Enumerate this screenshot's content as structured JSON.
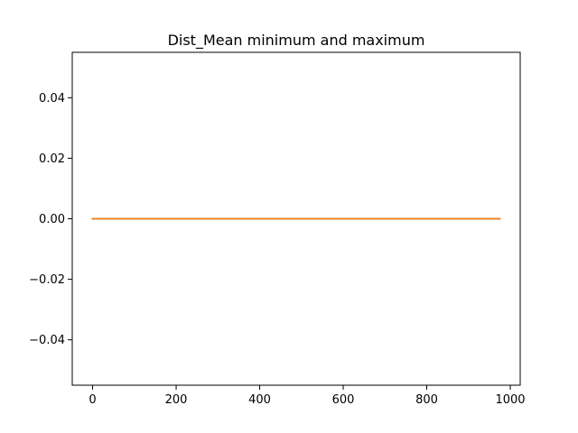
{
  "chart_data": {
    "type": "line",
    "title": "Dist_Mean minimum and maximum",
    "xlabel": "",
    "ylabel": "",
    "xlim": [
      -48.75,
      1023.75
    ],
    "ylim": [
      -0.055,
      0.055
    ],
    "x_ticks": [
      0,
      200,
      400,
      600,
      800,
      1000
    ],
    "x_tick_labels": [
      "0",
      "200",
      "400",
      "600",
      "800",
      "1000"
    ],
    "y_ticks": [
      -0.04,
      -0.02,
      0.0,
      0.02,
      0.04
    ],
    "y_tick_labels": [
      "−0.04",
      "−0.02",
      "0.00",
      "0.02",
      "0.04"
    ],
    "grid": false,
    "series": [
      {
        "color": "#1f77b4",
        "x": [
          0,
          975
        ],
        "y": [
          0,
          0
        ]
      },
      {
        "color": "#ff7f0e",
        "x": [
          0,
          975
        ],
        "y": [
          0,
          0
        ]
      }
    ]
  }
}
